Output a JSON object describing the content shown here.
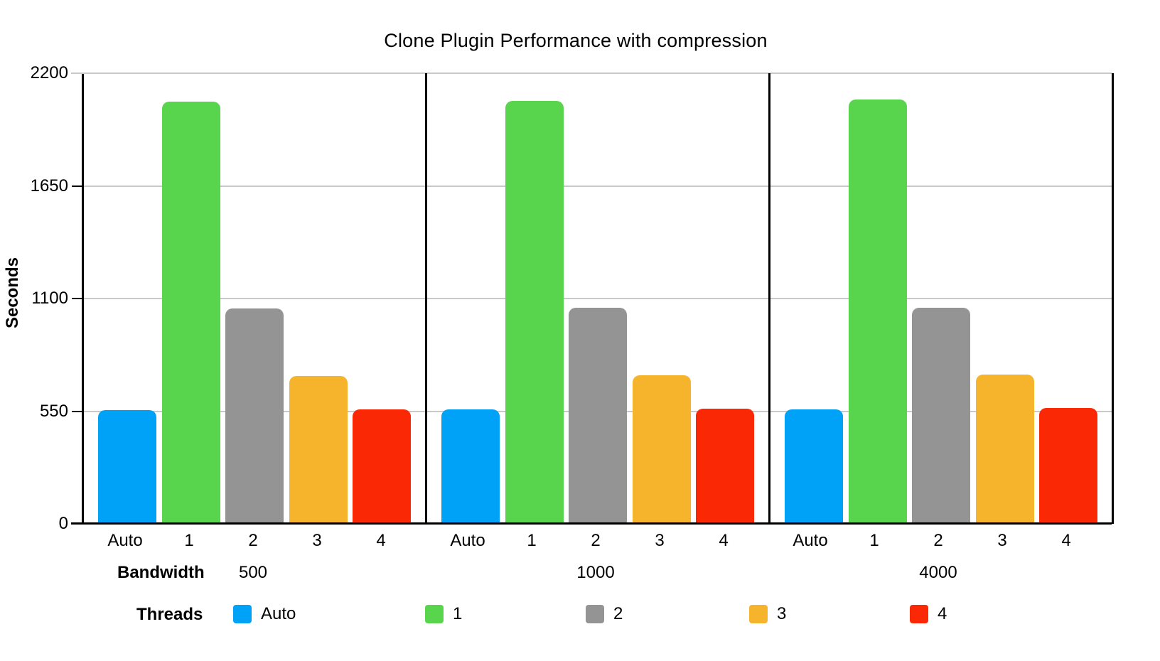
{
  "chart_data": {
    "type": "bar",
    "title": "Clone Plugin Performance with compression",
    "ylabel": "Seconds",
    "ylim": [
      0,
      2200
    ],
    "yticks": [
      0,
      550,
      1100,
      1650,
      2200
    ],
    "grid": true,
    "legend_position": "bottom",
    "group_axis_label": "Bandwidth",
    "series_axis_label": "Threads",
    "categories": [
      "Auto",
      "1",
      "2",
      "3",
      "4"
    ],
    "series_colors": [
      "#00A2F8",
      "#58D54C",
      "#949494",
      "#F6B42C",
      "#FB2805"
    ],
    "groups": [
      {
        "label": "500",
        "values": [
          556,
          2060,
          1050,
          722,
          557
        ]
      },
      {
        "label": "1000",
        "values": [
          557,
          2065,
          1056,
          727,
          562
        ]
      },
      {
        "label": "4000",
        "values": [
          558,
          2070,
          1056,
          730,
          564
        ]
      }
    ],
    "legend": [
      {
        "label": "Auto",
        "color": "#00A2F8"
      },
      {
        "label": "1",
        "color": "#58D54C"
      },
      {
        "label": "2",
        "color": "#949494"
      },
      {
        "label": "3",
        "color": "#F6B42C"
      },
      {
        "label": "4",
        "color": "#FB2805"
      }
    ]
  }
}
